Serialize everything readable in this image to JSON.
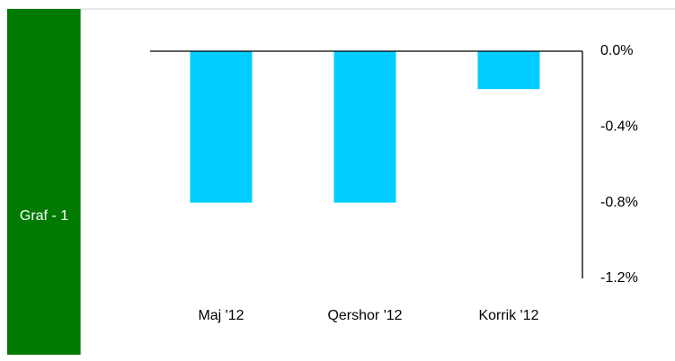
{
  "panel_label": "Graf - 1",
  "chart_data": {
    "type": "bar",
    "categories": [
      "Maj '12",
      "Qershor '12",
      "Korrik '12"
    ],
    "values": [
      -0.8,
      -0.8,
      -0.2
    ],
    "color": "#00ccff",
    "ylim": [
      -1.2,
      0
    ],
    "yticks": [
      {
        "value": 0,
        "label": "0.0%"
      },
      {
        "value": -0.4,
        "label": "-0.4%"
      },
      {
        "value": -0.8,
        "label": "-0.8%"
      },
      {
        "value": -1.2,
        "label": "-1.2%"
      }
    ],
    "grid": false
  }
}
